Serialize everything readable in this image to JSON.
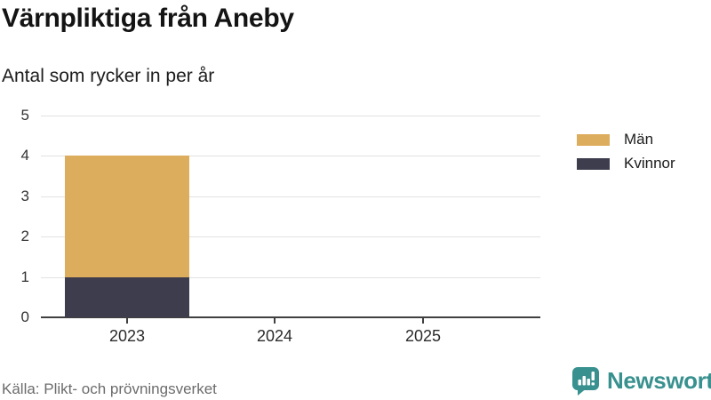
{
  "source": "Källa: Plikt- och prövningsverket",
  "branding": {
    "name": "Newsworthy",
    "icon": "bar-chart-speech-bubble-icon",
    "color": "#38918F"
  },
  "chart_data": {
    "type": "bar",
    "stacked": true,
    "title": "Värnpliktiga från Aneby",
    "subtitle": "Antal som rycker in per år",
    "xlabel": "",
    "ylabel": "",
    "categories": [
      "2023",
      "2024",
      "2025"
    ],
    "series": [
      {
        "name": "Män",
        "values": [
          3,
          0,
          0
        ],
        "color": "#DCAD5C"
      },
      {
        "name": "Kvinnor",
        "values": [
          1,
          0,
          0
        ],
        "color": "#3E3D4E"
      }
    ],
    "stack_order_bottom_to_top": [
      "Kvinnor",
      "Män"
    ],
    "totals": [
      4,
      0,
      0
    ],
    "ylim": [
      0,
      5
    ],
    "yticks": [
      0,
      1,
      2,
      3,
      4,
      5
    ],
    "grid": true,
    "legend_position": "right",
    "grid_color": "#E2E2E2",
    "axis_color": "#404040",
    "tick_label_color": "#333333"
  }
}
